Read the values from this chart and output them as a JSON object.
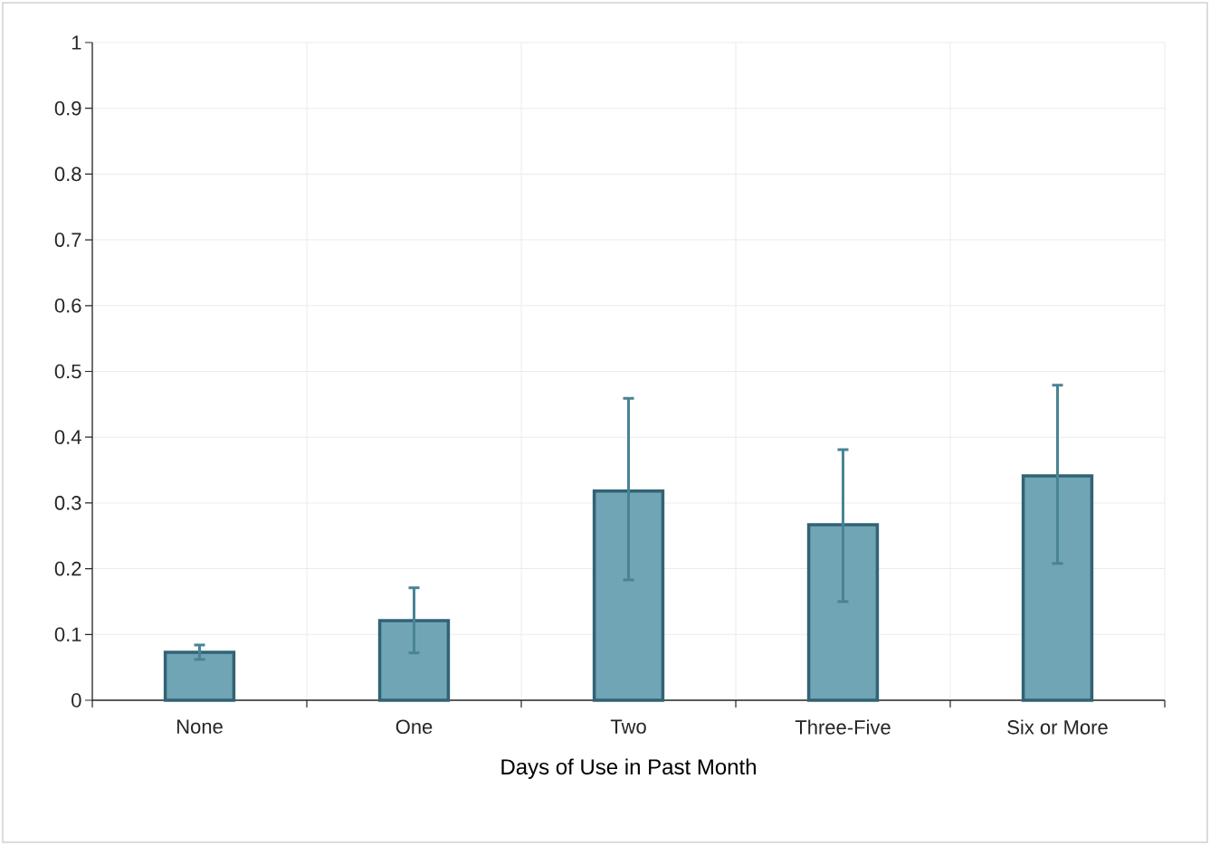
{
  "chart_data": {
    "type": "bar",
    "xlabel": "Days of Use in Past Month",
    "categories": [
      "None",
      "One",
      "Two",
      "Three-Five",
      "Six or More"
    ],
    "values": [
      0.073,
      0.121,
      0.318,
      0.267,
      0.341
    ],
    "errors": [
      [
        0.062,
        0.084
      ],
      [
        0.072,
        0.171
      ],
      [
        0.183,
        0.459
      ],
      [
        0.15,
        0.381
      ],
      [
        0.208,
        0.479
      ]
    ],
    "color": "#70a5b5",
    "ylim": [
      0,
      1
    ],
    "yticks": [
      0,
      0.1,
      0.2,
      0.3,
      0.4,
      0.5,
      0.6,
      0.7,
      0.8,
      0.9,
      1
    ],
    "grid": true
  }
}
